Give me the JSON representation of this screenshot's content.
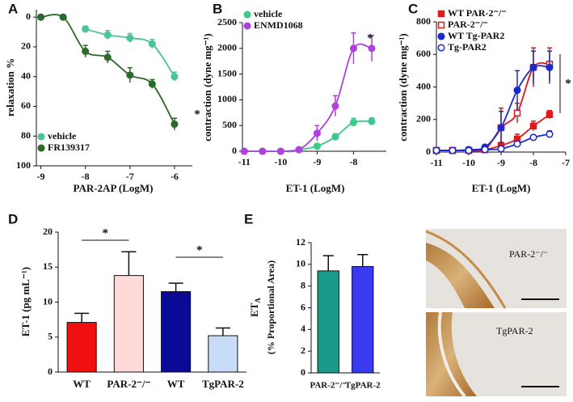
{
  "chart_data": [
    {
      "type": "line",
      "panel": "A",
      "xlabel": "PAR-2AP (LogM)",
      "ylabel": "relaxation %",
      "xlim": [
        -9.1,
        -5.6
      ],
      "xticks": [
        -9,
        -8,
        -7,
        -6
      ],
      "ylim": [
        -5,
        100
      ],
      "yticks": [
        0,
        20,
        40,
        60,
        80,
        100
      ],
      "y_inverted": true,
      "legend": "lower left",
      "annotation": "*",
      "series": [
        {
          "name": "vehicle",
          "color": "#4cc596",
          "marker": "circle",
          "filled": true,
          "x": [
            -8,
            -7.5,
            -7,
            -6.5,
            -6
          ],
          "values": [
            8,
            12,
            14,
            18,
            40
          ],
          "errors": [
            2,
            3,
            3,
            3,
            3
          ]
        },
        {
          "name": "FR139317",
          "color": "#2a6a2a",
          "marker": "circle",
          "filled": true,
          "x": [
            -9,
            -8.5,
            -8,
            -7.5,
            -7,
            -6.5,
            -6
          ],
          "values": [
            0,
            0,
            23,
            27,
            39,
            45,
            72
          ],
          "errors": [
            null,
            null,
            4,
            4,
            5,
            3,
            4
          ]
        }
      ]
    },
    {
      "type": "line",
      "panel": "B",
      "xlabel": "ET-1 (LogM)",
      "ylabel": "contraction (dyne mg⁻¹)",
      "xlim": [
        -11.05,
        -7.1
      ],
      "xticks": [
        -11,
        -10,
        -9,
        -8
      ],
      "ylim": [
        0,
        2500
      ],
      "yticks": [
        0,
        500,
        1000,
        1500,
        2000,
        2500
      ],
      "legend": "upper left",
      "annotation": "*",
      "series": [
        {
          "name": "vehicle",
          "color": "#3cc98a",
          "marker": "circle",
          "filled": true,
          "x": [
            -11,
            -10.5,
            -10,
            -9.5,
            -9,
            -8.5,
            -8,
            -7.5
          ],
          "values": [
            0,
            0,
            0,
            30,
            100,
            280,
            560,
            580
          ],
          "errors": [
            null,
            null,
            null,
            null,
            30,
            60,
            80,
            70
          ]
        },
        {
          "name": "ENMD1068",
          "color": "#b040e0",
          "marker": "circle",
          "filled": true,
          "x": [
            -11,
            -10.5,
            -10,
            -9.5,
            -9,
            -8.5,
            -8,
            -7.5
          ],
          "values": [
            0,
            0,
            0,
            30,
            350,
            880,
            2000,
            2000
          ],
          "errors": [
            null,
            null,
            null,
            null,
            150,
            200,
            300,
            250
          ]
        }
      ]
    },
    {
      "type": "line",
      "panel": "C",
      "xlabel": "ET-1 (LogM)",
      "ylabel": "contraction (dyne mg⁻¹)",
      "xlim": [
        -11,
        -7
      ],
      "xticks": [
        -11,
        -10,
        -9,
        -8,
        -7
      ],
      "ylim": [
        0,
        800
      ],
      "yticks": [
        0,
        200,
        400,
        600,
        800
      ],
      "legend": "upper left",
      "annotation": "*",
      "series": [
        {
          "name": "WT PAR-2⁻/⁻",
          "color": "#e01818",
          "marker": "square",
          "filled": true,
          "x": [
            -11,
            -10.5,
            -10,
            -9.5,
            -9,
            -8.5,
            -8,
            -7.5
          ],
          "values": [
            10,
            10,
            10,
            15,
            40,
            80,
            160,
            230
          ],
          "errors": [
            null,
            null,
            null,
            null,
            20,
            30,
            30,
            25
          ]
        },
        {
          "name": "PAR-2⁻/⁻",
          "color": "#e01818",
          "marker": "square",
          "filled": false,
          "x": [
            -11,
            -10.5,
            -10,
            -9.5,
            -9,
            -8.5,
            -8,
            -7.5
          ],
          "values": [
            10,
            10,
            10,
            15,
            150,
            240,
            520,
            540
          ],
          "errors": [
            null,
            null,
            null,
            null,
            120,
            60,
            120,
            100
          ]
        },
        {
          "name": "WT Tg-PAR2",
          "color": "#1a2ad0",
          "marker": "circle",
          "filled": true,
          "x": [
            -11,
            -10.5,
            -10,
            -9.5,
            -9,
            -8.5,
            -8,
            -7.5
          ],
          "values": [
            10,
            10,
            15,
            30,
            150,
            380,
            520,
            520
          ],
          "errors": [
            null,
            null,
            null,
            null,
            100,
            120,
            100,
            100
          ]
        },
        {
          "name": "Tg-PAR2",
          "color": "#1a2ad0",
          "marker": "circle",
          "filled": false,
          "x": [
            -11,
            -10.5,
            -10,
            -9.5,
            -9,
            -8.5,
            -8,
            -7.5
          ],
          "values": [
            10,
            10,
            10,
            15,
            20,
            50,
            90,
            110
          ],
          "errors": [
            null,
            null,
            null,
            null,
            10,
            10,
            15,
            20
          ]
        }
      ]
    },
    {
      "type": "bar",
      "panel": "D",
      "ylabel": "ET-1 (pg mL⁻¹)",
      "categories": [
        "WT",
        "PAR-2⁻/⁻",
        "WT",
        "TgPAR-2"
      ],
      "values": [
        7.1,
        13.8,
        11.5,
        5.2
      ],
      "errors": [
        1.3,
        3.4,
        1.2,
        1.1
      ],
      "colors": [
        "#f01010",
        "#ffd8d8",
        "#0a0a96",
        "#c8dcf8"
      ],
      "ylim": [
        0,
        20
      ],
      "yticks": [
        0,
        5,
        10,
        15,
        20
      ],
      "annotations": [
        "*",
        "*"
      ]
    },
    {
      "type": "bar",
      "panel": "E",
      "ylabel": "ET",
      "ylabel_sub": "A",
      "ylabel2": "(% Proportional Area)",
      "categories": [
        "PAR-2⁻/⁻",
        "TgPAR-2"
      ],
      "values": [
        9.4,
        9.8
      ],
      "errors": [
        1.4,
        1.1
      ],
      "colors": [
        "#1a9a88",
        "#3a3af0"
      ],
      "ylim": [
        0,
        12
      ],
      "yticks": [
        0,
        2,
        4,
        6,
        8,
        10,
        12
      ]
    }
  ],
  "micrographs": [
    {
      "label": "PAR-2⁻/⁻"
    },
    {
      "label": "TgPAR-2"
    }
  ]
}
